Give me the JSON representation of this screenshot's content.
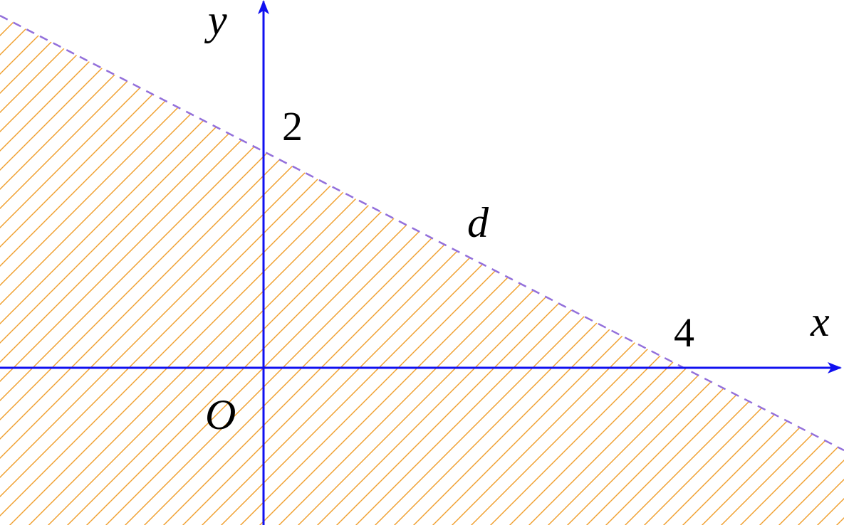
{
  "axes": {
    "x_label": "x",
    "y_label": "y",
    "origin_label": "O"
  },
  "intercepts": {
    "x": 4,
    "y": 2
  },
  "line_label": "d"
}
